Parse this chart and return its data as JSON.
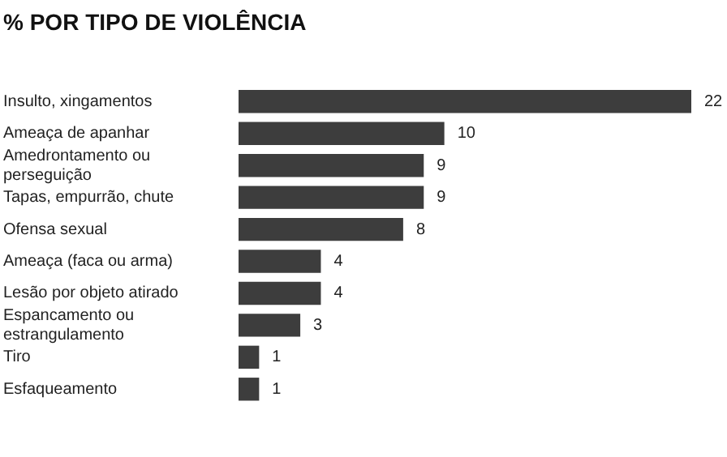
{
  "chart_data": {
    "type": "bar",
    "orientation": "horizontal",
    "title": "% POR TIPO DE VIOLÊNCIA",
    "categories": [
      "Insulto, xingamentos",
      "Ameaça de apanhar",
      "Amedrontamento ou perseguição",
      "Tapas, empurrão, chute",
      "Ofensa sexual",
      "Ameaça (faca ou arma)",
      "Lesão por objeto atirado",
      "Espancamento ou estrangulamento",
      "Tiro",
      "Esfaqueamento"
    ],
    "values": [
      22,
      10,
      9,
      9,
      8,
      4,
      4,
      3,
      1,
      1
    ],
    "color": "#3d3d3d",
    "data_labels": true
  }
}
